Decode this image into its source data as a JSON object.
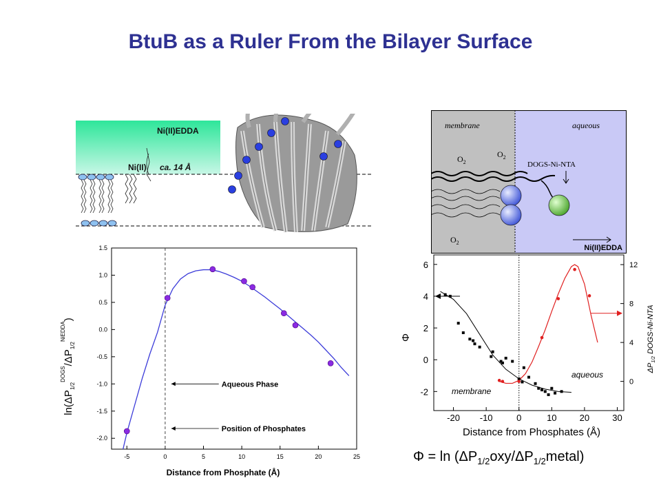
{
  "title": "BtuB as a Ruler From the Bilayer Surface",
  "cartoon": {
    "reagent_label": "Ni(II)EDDA",
    "ni_label": "Ni(II)",
    "distance_label": "ca. 14 Å"
  },
  "schematic": {
    "membrane_label": "membrane",
    "aqueous_label": "aqueous",
    "o2_label": "O",
    "o2_sub": "2",
    "dogs_label": "DOGS-Ni-NTA",
    "niedda_label": "Ni(II)EDDA",
    "colors": {
      "membrane": "#bdbdbd",
      "aqueous": "#c8c8f5",
      "sphere_blue": "#4a5fe0",
      "sphere_green": "#5db33a"
    }
  },
  "formula": {
    "lhs": "Φ = ln (",
    "delta": "Δ",
    "p": "P",
    "sub": "1/2",
    "oxy": "oxy/",
    "metal": "metal)"
  },
  "chart_data": [
    {
      "type": "scatter",
      "xlabel": "Distance from Phosphate (Å)",
      "ylabel": "ln(ΔP1/2DOGS/ΔP1/2NiEDDA)",
      "ylabel_parts": {
        "pre": "ln(",
        "delta": "Δ",
        "p": "P",
        "sub": "1/2",
        "sup1": "DOGS",
        "slash": "/",
        "sup2": "NiEDDA",
        "post": ")"
      },
      "xlim": [
        -7,
        25
      ],
      "ylim": [
        -2.2,
        1.5
      ],
      "xticks": [
        -5,
        0,
        5,
        10,
        15,
        20,
        25
      ],
      "yticks": [
        -2.0,
        -1.5,
        -1.0,
        -0.5,
        0.0,
        0.5,
        1.0,
        1.5
      ],
      "ytick_labels": [
        "-2.0",
        "-1.5",
        "-1.0",
        "-0.5",
        "0.0",
        "0.5",
        "1.0",
        "1.5"
      ],
      "points": {
        "x": [
          -5.0,
          0.3,
          6.2,
          10.3,
          11.4,
          15.5,
          17.0,
          21.6
        ],
        "y": [
          -1.87,
          0.58,
          1.11,
          0.89,
          0.78,
          0.3,
          0.08,
          -0.62
        ]
      },
      "fit_curve": {
        "x": [
          -5.5,
          -5.0,
          -4.0,
          -3.0,
          -2.0,
          -1.0,
          0.0,
          1.0,
          2.0,
          3.0,
          4.0,
          5.0,
          6.0,
          7.0,
          8.0,
          9.0,
          10.0,
          11.0,
          12.0,
          13.0,
          14.0,
          15.0,
          16.0,
          17.0,
          18.0,
          19.0,
          20.0,
          21.0,
          22.0,
          23.0,
          24.0
        ],
        "y": [
          -2.2,
          -1.9,
          -1.4,
          -0.9,
          -0.45,
          -0.05,
          0.45,
          0.75,
          0.93,
          1.03,
          1.08,
          1.1,
          1.1,
          1.07,
          1.02,
          0.96,
          0.89,
          0.8,
          0.7,
          0.6,
          0.49,
          0.38,
          0.26,
          0.14,
          0.02,
          -0.1,
          -0.23,
          -0.38,
          -0.53,
          -0.7,
          -0.85
        ]
      },
      "annotations": [
        {
          "text": "Aqueous Phase",
          "x_from": 0.8,
          "x_to": 7.0,
          "y": -1.0
        },
        {
          "text": "Position of Phosphates",
          "x_from": 0.8,
          "x_to": 7.0,
          "y": -1.82
        }
      ],
      "vline_x": 0,
      "point_color": "#8a2be2",
      "line_color": "#3b3bd9"
    },
    {
      "type": "scatter",
      "xlabel": "Distance from Phosphates (Å)",
      "ylabel_left": "Φ",
      "ylabel_right": "ΔP1/2 DOGS-Ni-NTA",
      "ylabel_right_parts": {
        "delta": "Δ",
        "p": "P",
        "sub": "1/2",
        "rest": " DOGS-Ni-NTA"
      },
      "xlim": [
        -26,
        32
      ],
      "ylim_left": [
        -3.2,
        6.6
      ],
      "ylim_right": [
        -3.0,
        13.0
      ],
      "xticks": [
        -20,
        -10,
        0,
        10,
        20,
        30
      ],
      "yticks_left": [
        -2,
        0,
        2,
        4,
        6
      ],
      "yticks_right": [
        0,
        4,
        8,
        12
      ],
      "membrane_label": "membrane",
      "aqueous_label": "aqueous",
      "black_series": {
        "name": "Φ",
        "x": [
          -22.5,
          -21.0,
          -18.5,
          -17.0,
          -15.0,
          -14.0,
          -13.5,
          -12.0,
          -8.5,
          -8.0,
          -5.5,
          -5.0,
          -4.0,
          -2.0,
          0.0,
          1.0,
          1.5,
          3.0,
          5.0,
          6.0,
          7.0,
          8.0,
          9.0,
          10.0,
          11.0,
          13.0
        ],
        "y": [
          4.1,
          4.0,
          2.3,
          1.7,
          1.3,
          1.2,
          1.0,
          0.8,
          0.2,
          0.5,
          -0.1,
          -0.2,
          0.1,
          -0.1,
          -1.2,
          -1.4,
          -0.5,
          -1.1,
          -1.5,
          -1.8,
          -1.9,
          -2.0,
          -2.2,
          -1.8,
          -2.1,
          -2.0
        ]
      },
      "black_fit": {
        "x": [
          -24,
          -20,
          -16,
          -12,
          -8,
          -4,
          0,
          4,
          8,
          12,
          16
        ],
        "y": [
          4.3,
          3.8,
          2.9,
          1.6,
          0.3,
          -0.6,
          -1.2,
          -1.6,
          -1.85,
          -2.0,
          -2.05
        ]
      },
      "red_series": {
        "name": "ΔP1/2 DOGS-Ni-NTA",
        "x": [
          -6.0,
          -5.0,
          0.0,
          7.0,
          12.0,
          17.0,
          21.5
        ],
        "y": [
          0.1,
          0.0,
          0.0,
          4.5,
          8.5,
          11.5,
          8.8
        ]
      },
      "red_fit": {
        "x": [
          -6,
          -4,
          -2,
          0,
          2,
          4,
          6,
          8,
          10,
          12,
          14,
          16,
          17,
          18,
          20,
          22,
          24
        ],
        "y": [
          0.0,
          -0.2,
          -0.2,
          0.1,
          0.8,
          2.0,
          3.6,
          5.3,
          7.2,
          9.0,
          10.6,
          11.8,
          12.0,
          11.8,
          10.0,
          6.8,
          4.0
        ]
      },
      "vline_x": 0,
      "black_color": "#000000",
      "red_color": "#e02020"
    }
  ]
}
